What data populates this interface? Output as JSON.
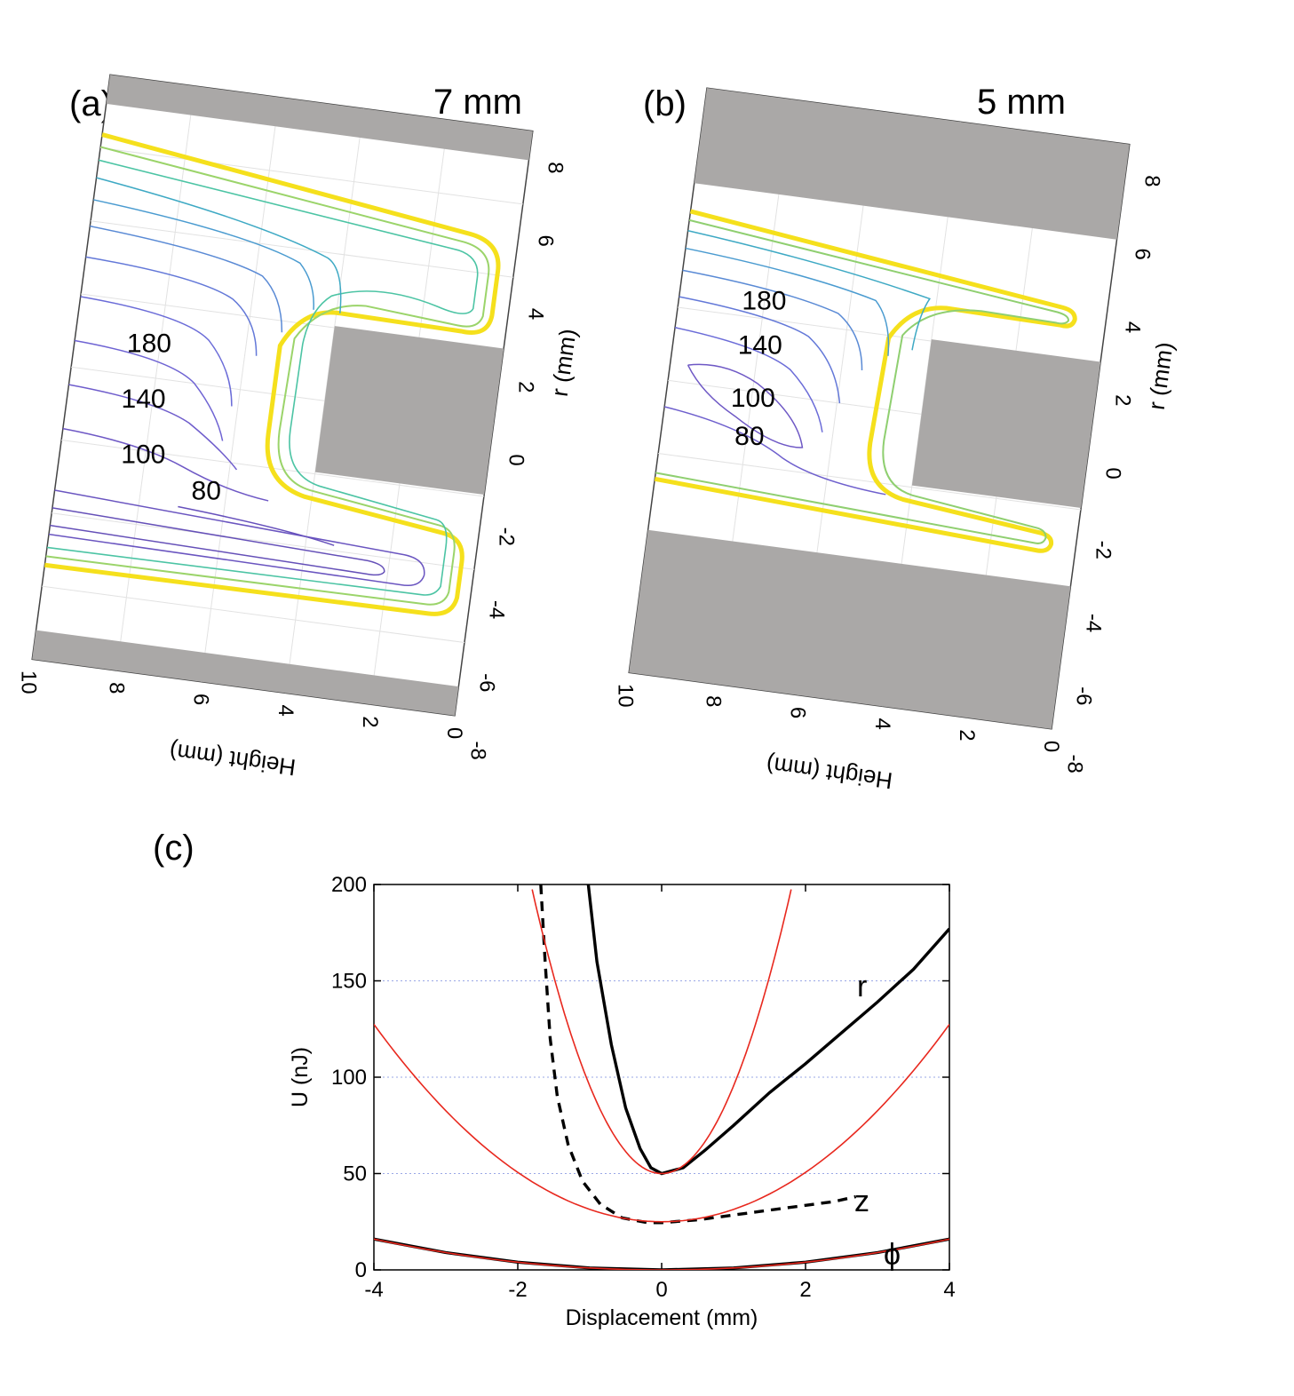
{
  "panels": [
    {
      "label": "(a)",
      "title": "7 mm",
      "type": "contour",
      "r_axis": {
        "label": "r (mm)",
        "ticks": [
          "8",
          "6",
          "4",
          "2",
          "0",
          "-2",
          "-4",
          "-6",
          "-8"
        ]
      },
      "height_axis": {
        "label": "Height (mm)",
        "ticks": [
          "10",
          "8",
          "6",
          "4",
          "2",
          "0"
        ]
      },
      "contour_labels": [
        "180",
        "140",
        "100",
        "80"
      ]
    },
    {
      "label": "(b)",
      "title": "5 mm",
      "type": "contour",
      "r_axis": {
        "label": "r (mm)",
        "ticks": [
          "8",
          "6",
          "4",
          "2",
          "0",
          "-2",
          "-4",
          "-6",
          "-8"
        ]
      },
      "height_axis": {
        "label": "Height (mm)",
        "ticks": [
          "10",
          "8",
          "6",
          "4",
          "2",
          "0"
        ]
      },
      "contour_labels": [
        "180",
        "140",
        "100",
        "80"
      ]
    }
  ],
  "chart_data": {
    "label": "(c)",
    "type": "line",
    "xlabel": "Displacement (mm)",
    "ylabel": "U (nJ)",
    "xlim": [
      -4,
      4
    ],
    "ylim": [
      0,
      200
    ],
    "x_ticks": [
      -4,
      -2,
      0,
      2,
      4
    ],
    "y_ticks": [
      0,
      50,
      100,
      150,
      200
    ],
    "grid": true,
    "series_labels": [
      "r",
      "z",
      "ϕ"
    ],
    "series": [
      {
        "name": "r",
        "style": "solid",
        "color": "#000000",
        "points": [
          [
            -1.02,
            200
          ],
          [
            -0.9,
            160
          ],
          [
            -0.7,
            117
          ],
          [
            -0.5,
            84
          ],
          [
            -0.3,
            63
          ],
          [
            -0.15,
            53
          ],
          [
            0,
            50
          ],
          [
            0.3,
            53
          ],
          [
            0.6,
            62
          ],
          [
            1,
            75
          ],
          [
            1.5,
            92
          ],
          [
            2,
            107
          ],
          [
            2.5,
            123
          ],
          [
            3,
            139
          ],
          [
            3.5,
            156
          ],
          [
            4,
            177
          ]
        ]
      },
      {
        "name": "z",
        "style": "dashed",
        "color": "#000000",
        "points": [
          [
            -1.68,
            200
          ],
          [
            -1.62,
            160
          ],
          [
            -1.55,
            120
          ],
          [
            -1.45,
            90
          ],
          [
            -1.3,
            65
          ],
          [
            -1.1,
            46
          ],
          [
            -0.85,
            34
          ],
          [
            -0.55,
            27
          ],
          [
            -0.2,
            24.5
          ],
          [
            0,
            24.5
          ],
          [
            0.5,
            26
          ],
          [
            1,
            28.5
          ],
          [
            1.5,
            31
          ],
          [
            2,
            33.5
          ],
          [
            2.4,
            35.5
          ],
          [
            2.7,
            38
          ]
        ]
      },
      {
        "name": "ϕ",
        "style": "solid",
        "color": "#000000",
        "points": [
          [
            -4,
            16
          ],
          [
            -3,
            9
          ],
          [
            -2,
            4
          ],
          [
            -1,
            1
          ],
          [
            0,
            0
          ],
          [
            1,
            1
          ],
          [
            2,
            4
          ],
          [
            3,
            9
          ],
          [
            4,
            16
          ]
        ]
      },
      {
        "name": "",
        "style": "solid",
        "color": "#e8281e",
        "fit_of": "r",
        "vertex": [
          0,
          50
        ],
        "a": 45.5,
        "domain": [
          -1.8,
          1.8
        ]
      },
      {
        "name": "",
        "style": "solid",
        "color": "#e8281e",
        "fit_of": "z",
        "vertex": [
          0,
          25
        ],
        "a": 6.4,
        "domain": [
          -4,
          4
        ]
      },
      {
        "name": "",
        "style": "solid",
        "color": "#e8281e",
        "fit_of": "ϕ",
        "vertex": [
          0,
          0
        ],
        "a": 1.0,
        "domain": [
          -4,
          4
        ]
      }
    ]
  }
}
